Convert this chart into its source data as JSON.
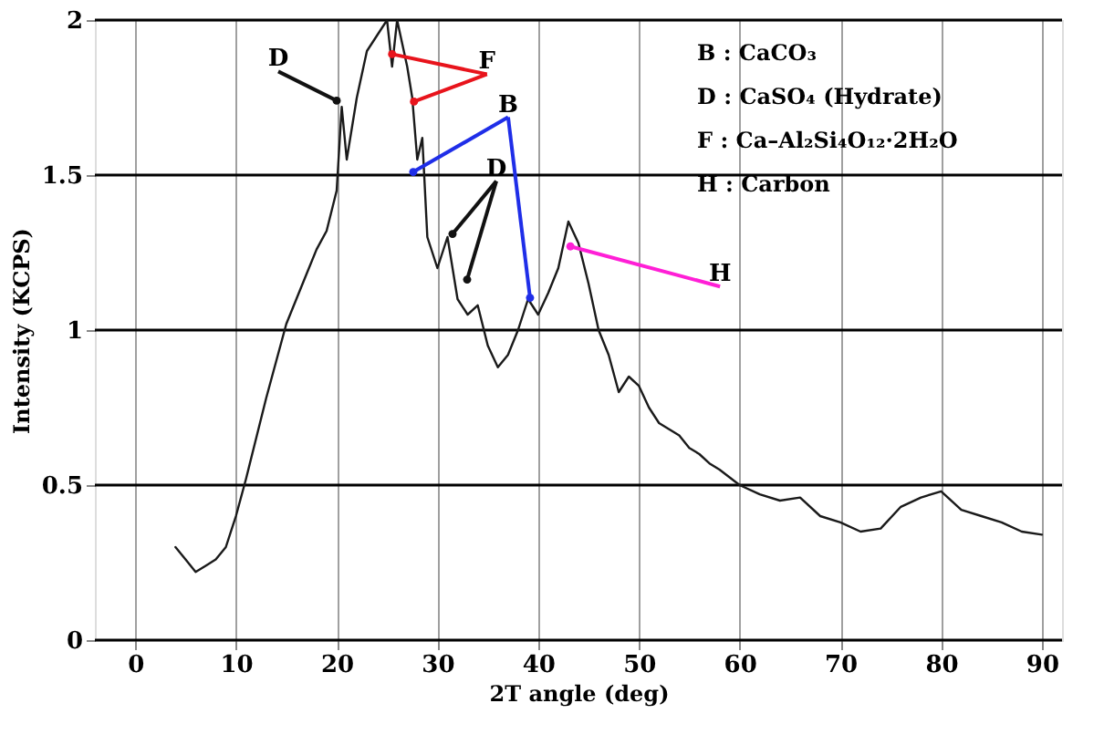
{
  "chart_data": {
    "type": "line",
    "xlabel": "2T angle (deg)",
    "ylabel": "Intensity (KCPS)",
    "xlim": [
      -4,
      92
    ],
    "xticks": [
      0,
      10,
      20,
      30,
      40,
      50,
      60,
      70,
      80,
      90
    ],
    "ylim": [
      0,
      2
    ],
    "yticks": [
      0,
      0.5,
      1,
      1.5,
      2
    ],
    "grid": true,
    "marker": "none",
    "line_style": "solid",
    "x": [
      4,
      5,
      6,
      7,
      8,
      9,
      10,
      11,
      12,
      13,
      14,
      15,
      16,
      17,
      18,
      19,
      20,
      20.5,
      21,
      22,
      23,
      24,
      25,
      25.5,
      26,
      27,
      27.5,
      28,
      28.5,
      29,
      30,
      31,
      32,
      33,
      34,
      35,
      36,
      37,
      38,
      39,
      40,
      41,
      42,
      43,
      44,
      45,
      46,
      47,
      48,
      49,
      50,
      51,
      52,
      53,
      54,
      55,
      56,
      57,
      58,
      60,
      62,
      64,
      66,
      68,
      70,
      72,
      74,
      76,
      78,
      80,
      82,
      84,
      86,
      88,
      90
    ],
    "series": [
      {
        "color": "#1a1a1a",
        "values": [
          0.3,
          0.26,
          0.22,
          0.24,
          0.26,
          0.3,
          0.4,
          0.52,
          0.65,
          0.78,
          0.9,
          1.02,
          1.1,
          1.18,
          1.26,
          1.32,
          1.45,
          1.72,
          1.55,
          1.75,
          1.9,
          1.95,
          2.0,
          1.85,
          2.0,
          1.85,
          1.75,
          1.55,
          1.62,
          1.3,
          1.2,
          1.3,
          1.1,
          1.05,
          1.08,
          0.95,
          0.88,
          0.92,
          1.0,
          1.1,
          1.05,
          1.12,
          1.2,
          1.35,
          1.28,
          1.15,
          1.0,
          0.92,
          0.8,
          0.85,
          0.82,
          0.75,
          0.7,
          0.68,
          0.66,
          0.62,
          0.6,
          0.57,
          0.55,
          0.5,
          0.47,
          0.45,
          0.46,
          0.4,
          0.38,
          0.35,
          0.36,
          0.43,
          0.46,
          0.48,
          0.42,
          0.4,
          0.38,
          0.35,
          0.34
        ]
      }
    ],
    "annotations": [
      {
        "text": "D",
        "x": 20.0,
        "y": 1.74
      },
      {
        "text": "F",
        "x": 25.5,
        "y": 1.89
      },
      {
        "text": "B",
        "x": 27.6,
        "y": 1.51
      },
      {
        "text": "D",
        "x": 31.5,
        "y": 1.31
      },
      {
        "text": "H",
        "x": 43.2,
        "y": 1.27
      },
      "B : CaCO₃",
      "D : CaSO₄ (Hydrate)",
      "F : Ca–Al₂Si₄O₁₂·2H₂O",
      "H : Carbon"
    ]
  }
}
